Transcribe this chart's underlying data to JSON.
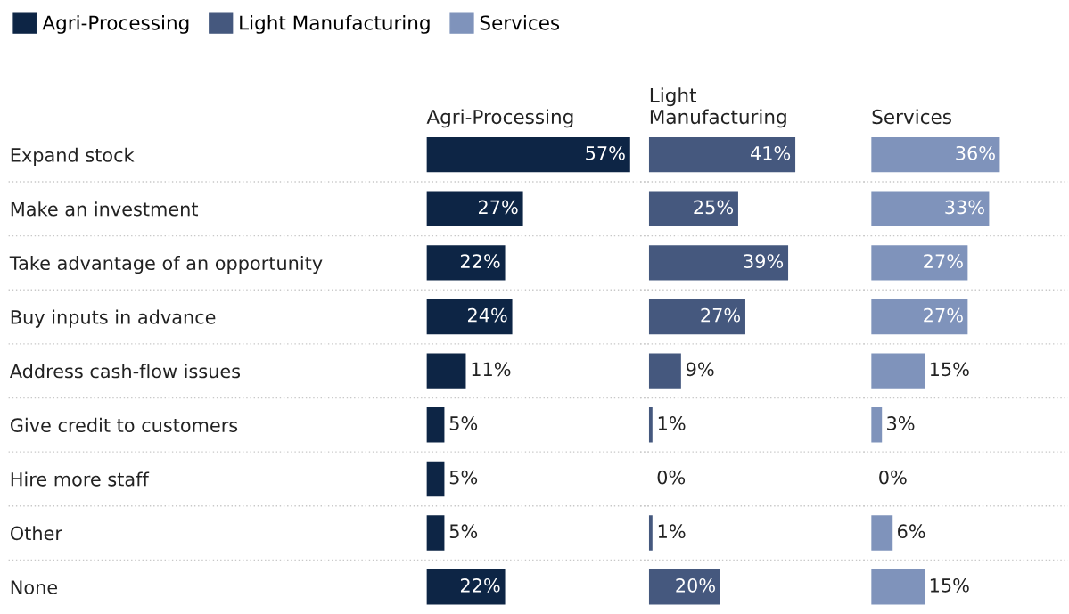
{
  "chart_data": [
    {
      "type": "bar",
      "orientation": "horizontal",
      "title": "Agri-Processing",
      "categories": [
        "Expand stock",
        "Make an investment",
        "Take advantage of an opportunity",
        "Buy inputs in advance",
        "Address cash-flow issues",
        "Give credit to customers",
        "Hire more staff",
        "Other",
        "None"
      ],
      "series": [
        {
          "name": "Agri-Processing",
          "color": "#0d2545",
          "values": [
            57,
            27,
            22,
            24,
            11,
            5,
            5,
            5,
            22
          ],
          "value_labels": [
            "57%",
            "27%",
            "22%",
            "24%",
            "11%",
            "5%",
            "5%",
            "5%",
            "22%"
          ]
        }
      ],
      "tick_labels": "y",
      "grid": "y",
      "legend": "top left"
    },
    {
      "type": "bar",
      "orientation": "horizontal",
      "title": "Light\nManufacturing",
      "series": [
        {
          "name": "Light Manufacturing",
          "color": "#45587e",
          "values": [
            41,
            25,
            39,
            27,
            9,
            1,
            0,
            1,
            20
          ],
          "value_labels": [
            "41%",
            "25%",
            "39%",
            "27%",
            "9%",
            "1%",
            "0%",
            "1%",
            "20%"
          ]
        }
      ],
      "tick_labels": false,
      "grid": "y",
      "legend": "top left"
    },
    {
      "type": "bar",
      "orientation": "horizontal",
      "title": "Services",
      "series": [
        {
          "name": "Services",
          "color": "#7f93bb",
          "values": [
            36,
            33,
            27,
            27,
            15,
            3,
            0,
            6,
            15
          ],
          "value_labels": [
            "36%",
            "33%",
            "27%",
            "27%",
            "15%",
            "3%",
            "0%",
            "6%",
            "15%"
          ]
        }
      ],
      "tick_labels": false,
      "grid": "y",
      "legend": "top left"
    }
  ]
}
